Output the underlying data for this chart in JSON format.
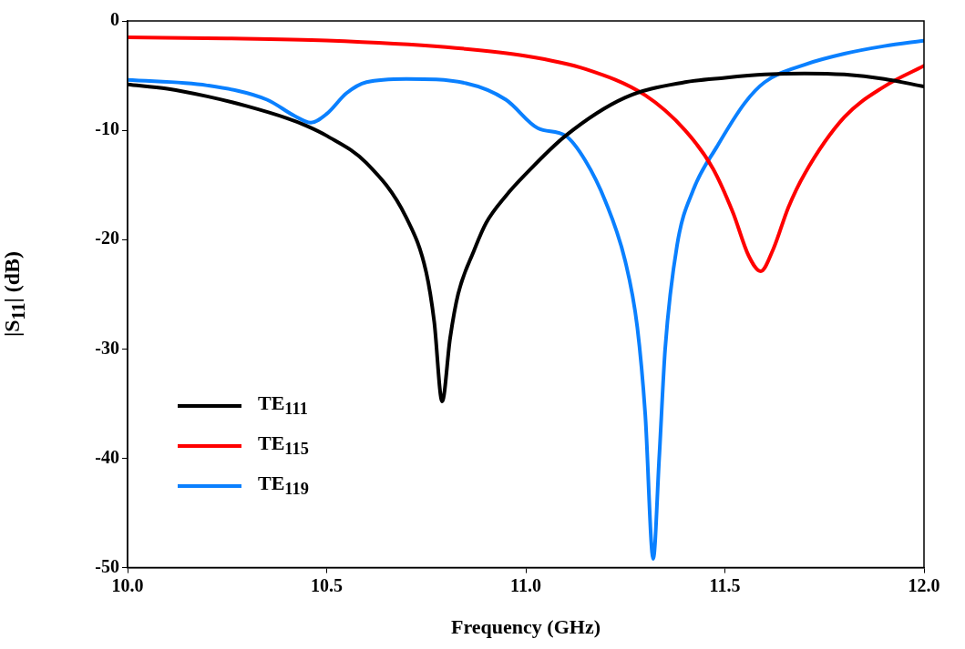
{
  "chart_data": {
    "type": "line",
    "xlabel": "Frequency (GHz)",
    "ylabel": "|S$_{11}$| (dB)",
    "xlim": [
      10,
      12
    ],
    "xticks": [
      {
        "value": 10,
        "label": "10.0"
      },
      {
        "value": 10.5,
        "label": "10.5"
      },
      {
        "value": 11,
        "label": "11.0"
      },
      {
        "value": 11.5,
        "label": "11.5"
      },
      {
        "value": 12,
        "label": "12.0"
      }
    ],
    "ylim": [
      -50,
      0
    ],
    "yticks": [
      -50,
      -40,
      -30,
      -20,
      -10,
      0
    ],
    "grid": false,
    "legend": "bottom left",
    "marker": "none",
    "line_style": "solid",
    "series": [
      {
        "name": "TE$_{111}$",
        "color": "#000000",
        "x": [
          10,
          10.1,
          10.2,
          10.3,
          10.4,
          10.45,
          10.5,
          10.6,
          10.7,
          10.75,
          10.77,
          10.79,
          10.81,
          10.83,
          10.87,
          10.9,
          10.95,
          11,
          11.1,
          11.25,
          11.4,
          11.5,
          11.6,
          11.7,
          11.8,
          11.9,
          12
        ],
        "values": [
          -5.8,
          -6.2,
          -6.9,
          -7.8,
          -8.9,
          -9.6,
          -10.5,
          -13,
          -18,
          -23,
          -27.5,
          -34.8,
          -29,
          -25,
          -21,
          -18.5,
          -16,
          -14,
          -10.5,
          -7,
          -5.6,
          -5.2,
          -4.9,
          -4.8,
          -4.9,
          -5.3,
          -6
        ]
      },
      {
        "name": "TE$_{115}$",
        "color": "#ff0000",
        "x": [
          10,
          10.25,
          10.5,
          10.8,
          11,
          11.15,
          11.3,
          11.4,
          11.47,
          11.52,
          11.56,
          11.59,
          11.62,
          11.66,
          11.7,
          11.8,
          11.9,
          12
        ],
        "values": [
          -1.5,
          -1.6,
          -1.8,
          -2.4,
          -3.2,
          -4.4,
          -6.8,
          -10,
          -13.5,
          -17.5,
          -21.5,
          -22.9,
          -21,
          -17,
          -14,
          -8.8,
          -6,
          -4.1
        ]
      },
      {
        "name": "TE$_{119}$",
        "color": "#0a80ff",
        "x": [
          10,
          10.2,
          10.35,
          10.42,
          10.46,
          10.5,
          10.55,
          10.6,
          10.7,
          10.85,
          10.95,
          11.03,
          11.1,
          11.15,
          11.2,
          11.25,
          11.28,
          11.3,
          11.32,
          11.335,
          11.35,
          11.38,
          11.42,
          11.48,
          11.55,
          11.6,
          11.7,
          11.8,
          11.9,
          12
        ],
        "values": [
          -5.4,
          -5.9,
          -7.2,
          -8.7,
          -9.3,
          -8.5,
          -6.6,
          -5.6,
          -5.3,
          -5.7,
          -7.2,
          -9.8,
          -10.5,
          -12.8,
          -16.5,
          -22,
          -28,
          -36,
          -49.2,
          -40,
          -30,
          -20.5,
          -15.5,
          -11.5,
          -7.5,
          -5.6,
          -4,
          -3,
          -2.3,
          -1.8
        ]
      }
    ]
  }
}
